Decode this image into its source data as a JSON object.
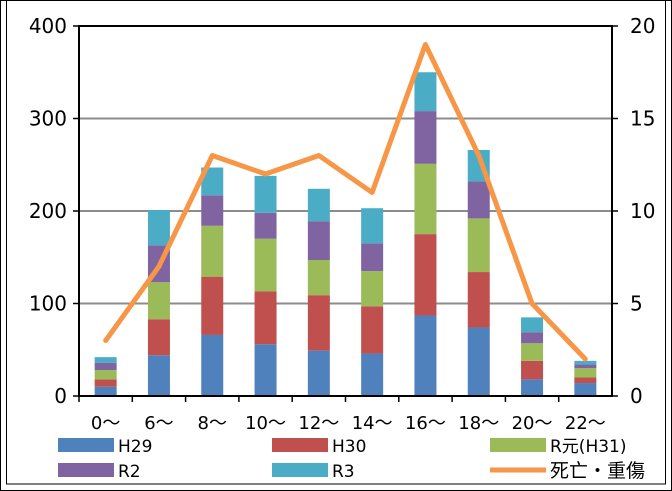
{
  "chart_data": {
    "type": "bar",
    "title": "",
    "stacked": true,
    "categories": [
      "0〜",
      "6〜",
      "8〜",
      "10〜",
      "12〜",
      "14〜",
      "16〜",
      "18〜",
      "20〜",
      "22〜"
    ],
    "series": [
      {
        "name": "H29",
        "color": "#4F81BD",
        "values": [
          10,
          44,
          66,
          56,
          49,
          46,
          87,
          74,
          18,
          14
        ]
      },
      {
        "name": "H30",
        "color": "#C0504D",
        "values": [
          8,
          39,
          63,
          57,
          60,
          51,
          88,
          60,
          20,
          6
        ]
      },
      {
        "name": "R元(H31)",
        "color": "#9BBB59",
        "values": [
          10,
          40,
          55,
          57,
          38,
          38,
          76,
          58,
          19,
          10
        ]
      },
      {
        "name": "R2",
        "color": "#8064A2",
        "values": [
          8,
          40,
          33,
          28,
          42,
          30,
          57,
          40,
          12,
          4
        ]
      },
      {
        "name": "R3",
        "color": "#4BACC6",
        "values": [
          6,
          38,
          30,
          40,
          35,
          38,
          42,
          34,
          16,
          4
        ]
      }
    ],
    "line_series": {
      "name": "死亡・重傷",
      "color": "#F79646",
      "axis": "right",
      "values": [
        3,
        7,
        13,
        12,
        13,
        11,
        19,
        13,
        5,
        2
      ]
    },
    "y_left": {
      "min": 0,
      "max": 400,
      "ticks": [
        0,
        100,
        200,
        300,
        400
      ]
    },
    "y_right": {
      "min": 0,
      "max": 20,
      "ticks": [
        0,
        5,
        10,
        15,
        20
      ]
    },
    "grid": true,
    "legend_position": "bottom"
  }
}
